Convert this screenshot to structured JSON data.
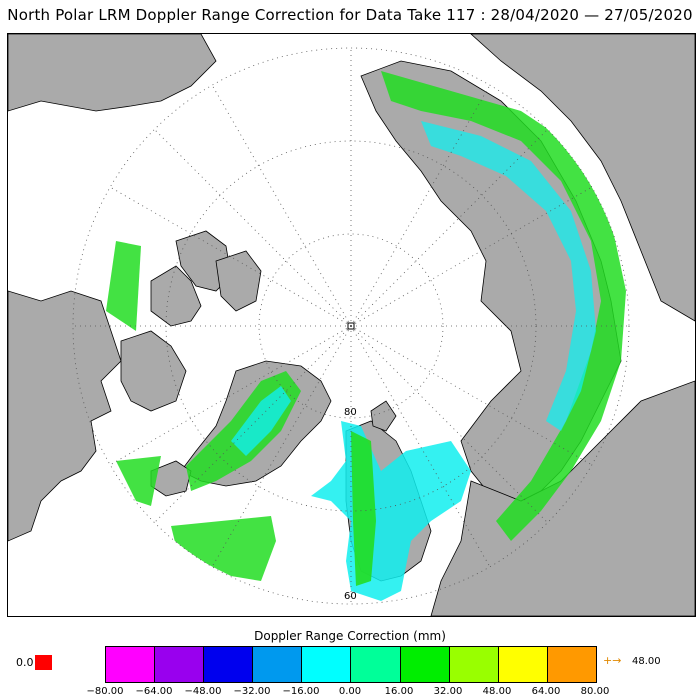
{
  "title": "North Polar LRM Doppler Range Correction for Data Take 117 : 28/04/2020 — 27/05/2020",
  "map": {
    "lat_labels": [
      "80",
      "60"
    ],
    "pole_marker": "pole-marker"
  },
  "legend": {
    "title": "Doppler Range Correction (mm)",
    "ticks": [
      "−80.00",
      "−64.00",
      "−48.00",
      "−32.00",
      "−16.00",
      "0.00",
      "16.00",
      "32.00",
      "48.00",
      "64.00",
      "80.00"
    ],
    "colors": [
      "#ff00ff",
      "#9900ee",
      "#0000ee",
      "#0099ee",
      "#00ffff",
      "#00ff99",
      "#00ee00",
      "#99ff00",
      "#ffff00",
      "#ff9900"
    ],
    "below_value": "0.0",
    "below_color": "#ff0000",
    "above_arrow": "+→",
    "above_value": "48.00",
    "above_color": "#e08800"
  },
  "colors": {
    "land": "#aaaaaa",
    "ocean": "#ffffff",
    "track_green": "#22dd22",
    "track_cyan": "#11eeee",
    "track_blue": "#2288dd"
  }
}
